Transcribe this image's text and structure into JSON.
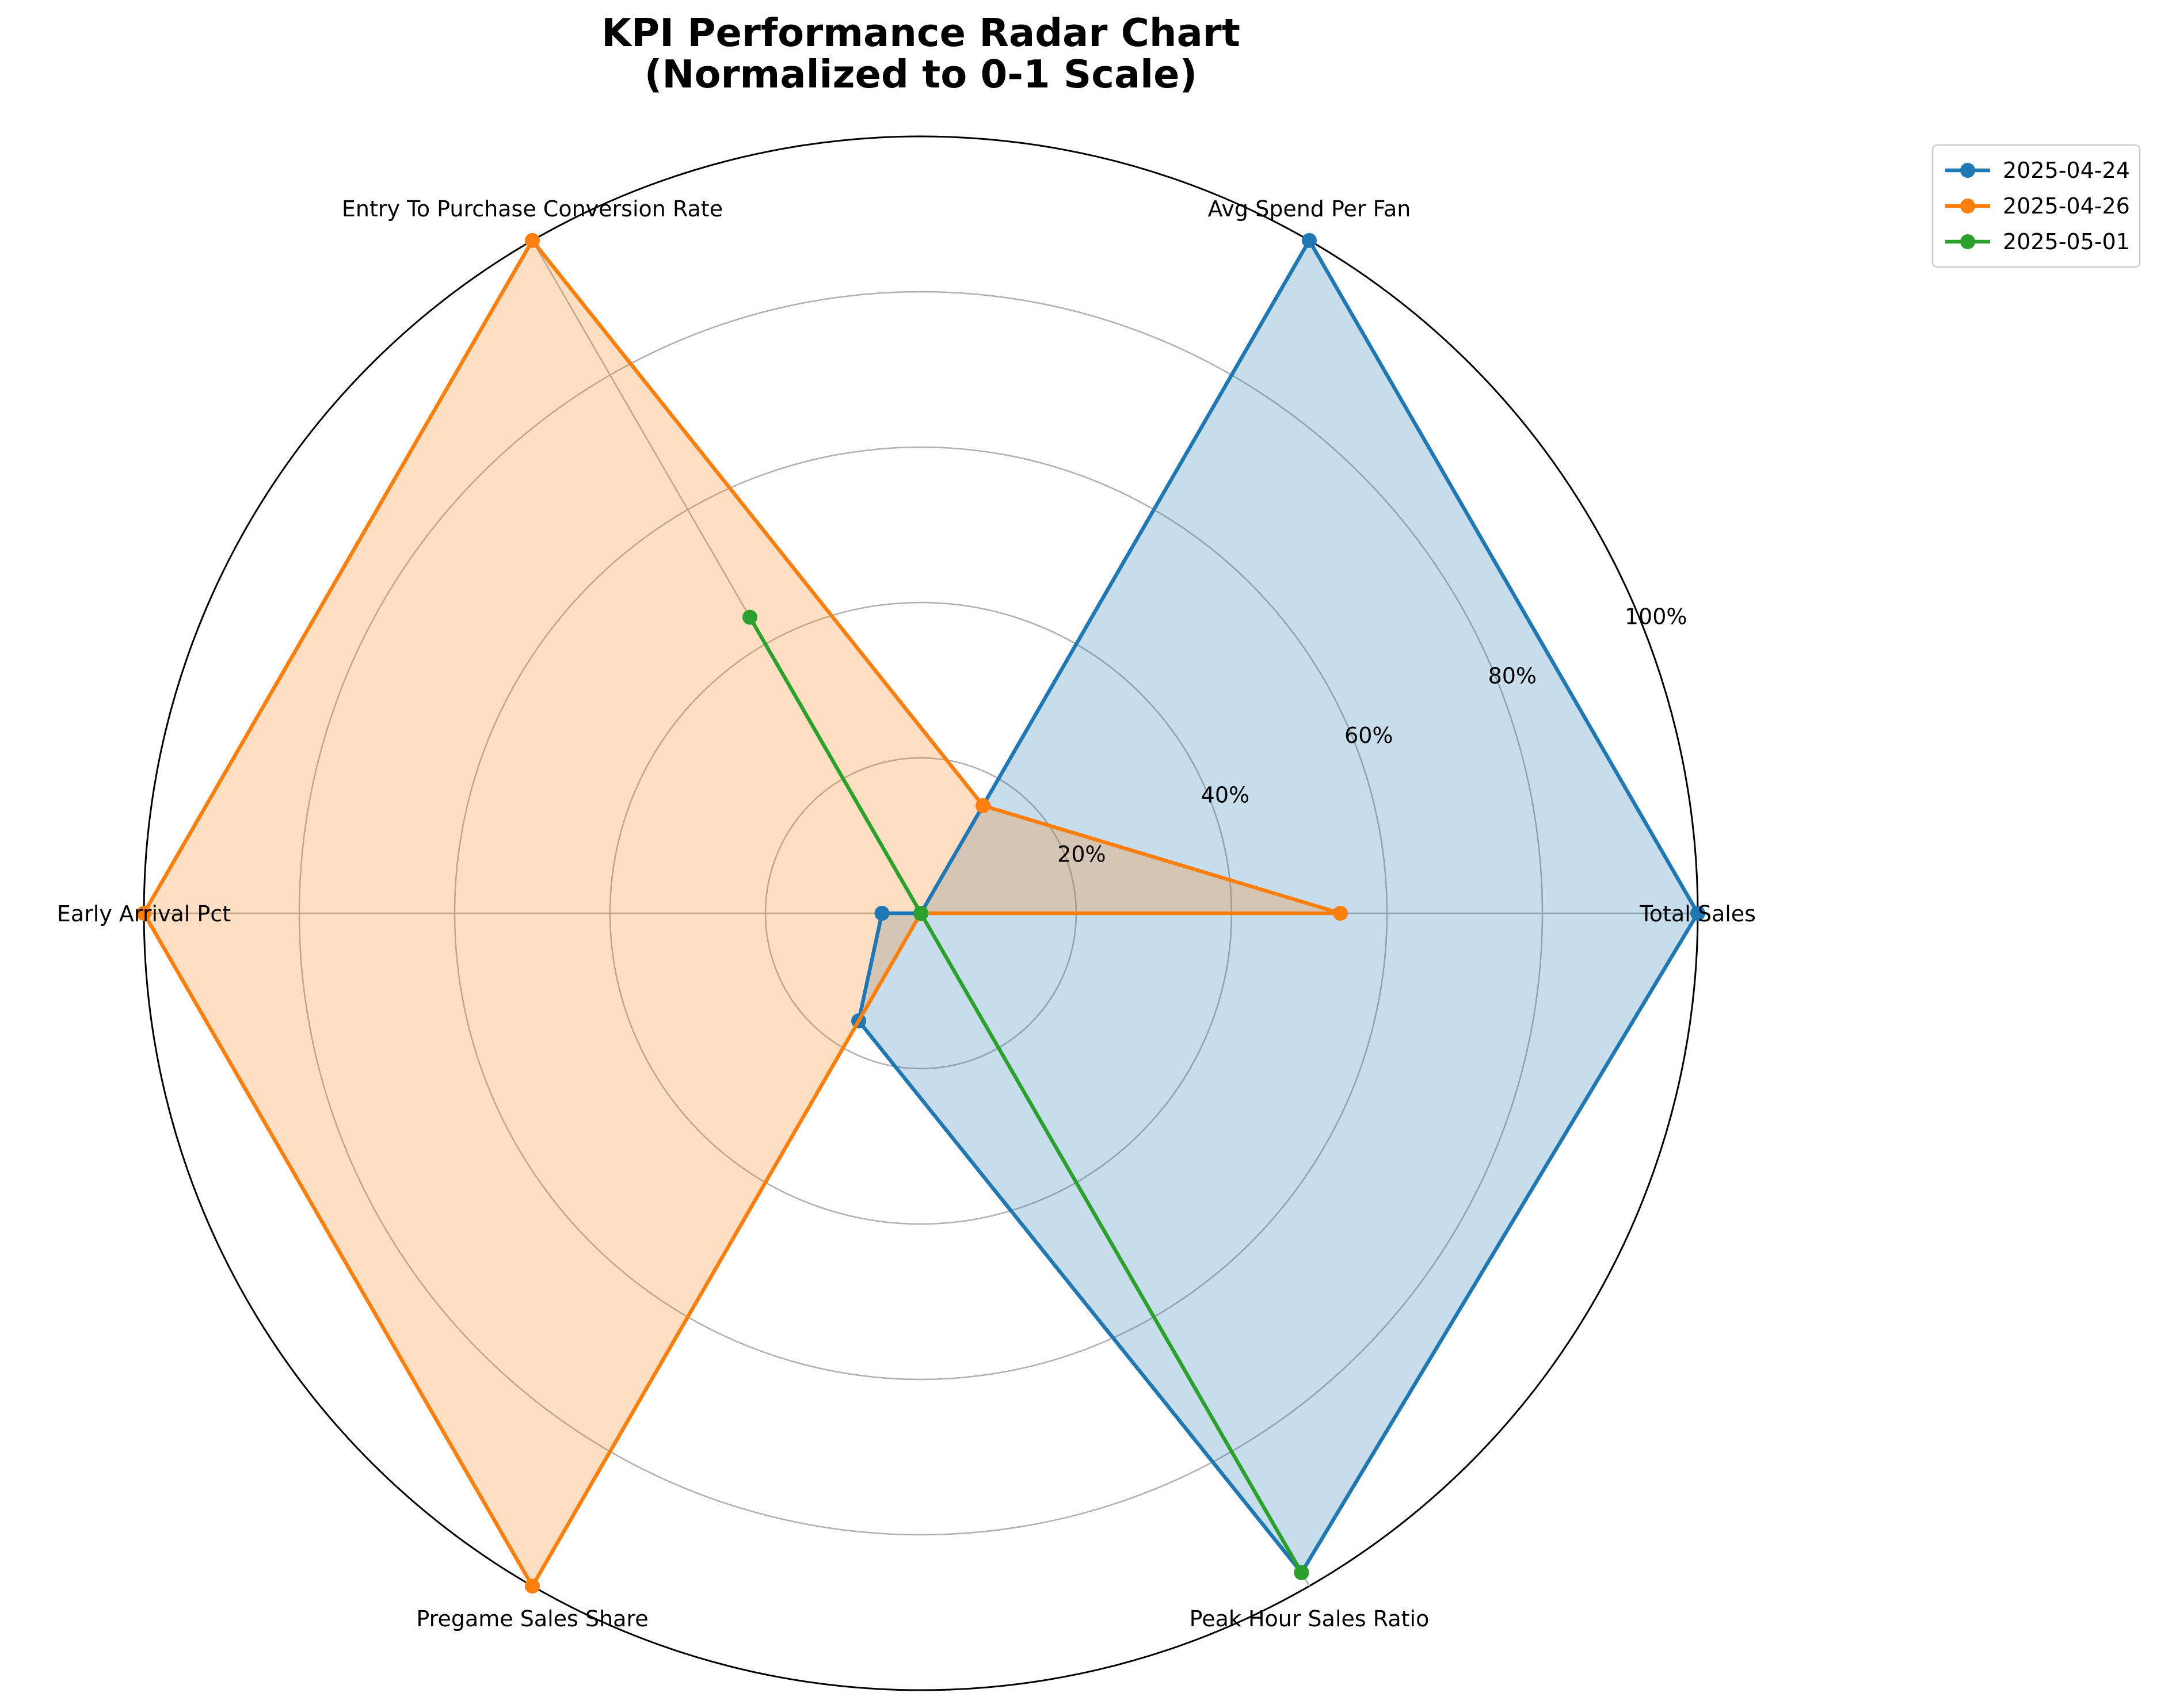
{
  "chart_data": {
    "type": "radar",
    "title_line1": "KPI Performance Radar Chart",
    "title_line2": "(Normalized to 0-1 Scale)",
    "categories": [
      "Total Sales",
      "Avg Spend Per Fan",
      "Entry To Purchase Conversion Rate",
      "Early Arrival Pct",
      "Pregame Sales Share",
      "Peak Hour Sales Ratio"
    ],
    "rlim": [
      0,
      1
    ],
    "rticks": [
      0.2,
      0.4,
      0.6,
      0.8,
      1.0
    ],
    "rtick_labels": [
      "20%",
      "40%",
      "60%",
      "80%",
      "100%"
    ],
    "grid": true,
    "legend_position": "top-right",
    "series": [
      {
        "name": "2025-04-24",
        "color": "#1f77b4",
        "values": [
          1.0,
          1.0,
          0.0,
          0.05,
          0.16,
          0.98
        ],
        "filled": true
      },
      {
        "name": "2025-04-26",
        "color": "#ff7f0e",
        "values": [
          0.54,
          0.16,
          1.0,
          1.0,
          1.0,
          0.0
        ],
        "filled": true
      },
      {
        "name": "2025-05-01",
        "color": "#2ca02c",
        "values": [
          0.0,
          0.0,
          0.44,
          0.0,
          0.0,
          0.98
        ],
        "filled": false
      }
    ]
  }
}
